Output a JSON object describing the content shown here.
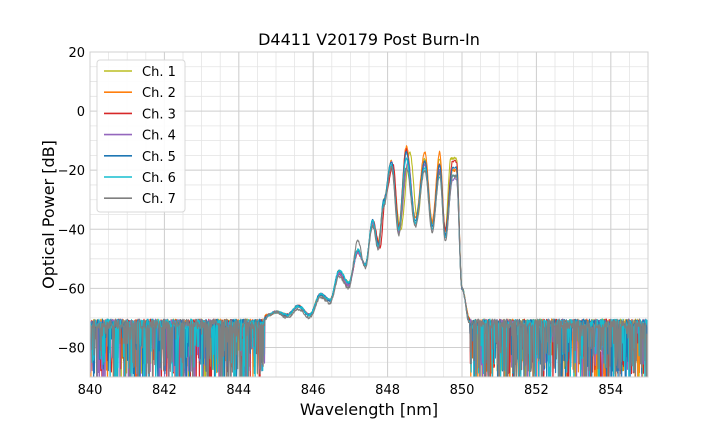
{
  "chart_data": {
    "type": "line",
    "title": "D4411 V20179 Post Burn-In",
    "xlabel": "Wavelength [nm]",
    "ylabel": "Optical Power [dB]",
    "xlim": [
      840,
      855
    ],
    "ylim": [
      -90,
      20
    ],
    "xticks": [
      840,
      842,
      844,
      846,
      848,
      850,
      852,
      854
    ],
    "yticks": [
      20,
      0,
      -20,
      -40,
      -60,
      -80
    ],
    "x_minor_step": 0.5,
    "y_minor_step": 5,
    "grid": true,
    "legend_position": "top-left",
    "noise_floor_x_ranges": [
      [
        840,
        845.0
      ],
      [
        850.2,
        855
      ]
    ],
    "noise_floor_level": -72,
    "noise_floor_min": -90,
    "series": [
      {
        "name": "Ch. 1",
        "color": "#bcbd22",
        "envelope": [
          [
            840,
            -72
          ],
          [
            844,
            -71
          ],
          [
            845,
            -69
          ],
          [
            845.6,
            -67
          ],
          [
            846,
            -66
          ],
          [
            846.5,
            -63
          ],
          [
            847,
            -60
          ],
          [
            847.5,
            -55
          ],
          [
            848,
            -48
          ],
          [
            848.3,
            -40
          ],
          [
            848.8,
            -35
          ],
          [
            849.3,
            -32
          ],
          [
            849.6,
            -28
          ],
          [
            849.9,
            -65
          ],
          [
            850.2,
            -71
          ],
          [
            855,
            -73
          ]
        ],
        "peaks": [
          [
            845.0,
            -68
          ],
          [
            845.6,
            -66
          ],
          [
            846.2,
            -62
          ],
          [
            846.7,
            -54
          ],
          [
            847.2,
            -47
          ],
          [
            847.6,
            -38
          ],
          [
            847.9,
            -30
          ],
          [
            848.1,
            -17
          ],
          [
            848.6,
            -14
          ],
          [
            849.0,
            -16
          ],
          [
            849.4,
            -16
          ],
          [
            849.7,
            -16
          ]
        ],
        "valleys": [
          [
            844.8,
            -69
          ],
          [
            845.3,
            -69
          ],
          [
            845.9,
            -69
          ],
          [
            846.45,
            -64
          ],
          [
            846.95,
            -58
          ],
          [
            847.4,
            -52
          ],
          [
            847.75,
            -45
          ],
          [
            848.35,
            -40
          ],
          [
            848.8,
            -36
          ],
          [
            849.2,
            -38
          ],
          [
            849.55,
            -40
          ]
        ]
      },
      {
        "name": "Ch. 2",
        "color": "#ff7f0e",
        "peaks": [
          [
            845.0,
            -68
          ],
          [
            845.6,
            -66
          ],
          [
            846.2,
            -62
          ],
          [
            846.7,
            -55
          ],
          [
            847.2,
            -48
          ],
          [
            847.6,
            -38
          ],
          [
            847.9,
            -31
          ],
          [
            848.1,
            -17
          ],
          [
            848.5,
            -12
          ],
          [
            849.0,
            -14
          ],
          [
            849.4,
            -14
          ],
          [
            849.75,
            -20
          ]
        ],
        "valleys": [
          [
            844.8,
            -69
          ],
          [
            845.3,
            -69
          ],
          [
            845.9,
            -69
          ],
          [
            846.45,
            -64
          ],
          [
            846.95,
            -59
          ],
          [
            847.4,
            -52
          ],
          [
            847.75,
            -44
          ],
          [
            848.3,
            -39
          ],
          [
            848.75,
            -36
          ],
          [
            849.2,
            -37
          ],
          [
            849.55,
            -41
          ]
        ]
      },
      {
        "name": "Ch. 3",
        "color": "#d62728",
        "peaks": [
          [
            845.0,
            -68
          ],
          [
            845.6,
            -66
          ],
          [
            846.2,
            -62
          ],
          [
            846.7,
            -55
          ],
          [
            847.2,
            -48
          ],
          [
            847.6,
            -37
          ],
          [
            847.95,
            -28
          ],
          [
            848.15,
            -18
          ],
          [
            848.5,
            -13
          ],
          [
            849.0,
            -17
          ],
          [
            849.4,
            -18
          ],
          [
            849.75,
            -17
          ]
        ],
        "valleys": [
          [
            844.8,
            -69
          ],
          [
            845.3,
            -69
          ],
          [
            845.9,
            -69
          ],
          [
            846.45,
            -64
          ],
          [
            846.95,
            -59
          ],
          [
            847.4,
            -52
          ],
          [
            847.8,
            -46
          ],
          [
            848.3,
            -39
          ],
          [
            848.75,
            -38
          ],
          [
            849.2,
            -39
          ],
          [
            849.55,
            -40
          ]
        ]
      },
      {
        "name": "Ch. 4",
        "color": "#9467bd",
        "peaks": [
          [
            845.0,
            -68
          ],
          [
            845.6,
            -66
          ],
          [
            846.2,
            -62
          ],
          [
            846.7,
            -55
          ],
          [
            847.2,
            -48
          ],
          [
            847.6,
            -38
          ],
          [
            847.9,
            -31
          ],
          [
            848.1,
            -17
          ],
          [
            848.55,
            -17
          ],
          [
            849.0,
            -18
          ],
          [
            849.4,
            -20
          ],
          [
            849.75,
            -23
          ]
        ],
        "valleys": [
          [
            844.8,
            -69
          ],
          [
            845.3,
            -69
          ],
          [
            845.9,
            -69
          ],
          [
            846.45,
            -64
          ],
          [
            846.95,
            -59
          ],
          [
            847.4,
            -52
          ],
          [
            847.75,
            -46
          ],
          [
            848.3,
            -41
          ],
          [
            848.75,
            -38
          ],
          [
            849.2,
            -40
          ],
          [
            849.55,
            -43
          ]
        ]
      },
      {
        "name": "Ch. 5",
        "color": "#1f77b4",
        "peaks": [
          [
            845.0,
            -68
          ],
          [
            845.6,
            -66
          ],
          [
            846.2,
            -62
          ],
          [
            846.7,
            -54
          ],
          [
            847.2,
            -47
          ],
          [
            847.6,
            -37
          ],
          [
            847.9,
            -30
          ],
          [
            848.1,
            -17
          ],
          [
            848.5,
            -14
          ],
          [
            849.0,
            -17
          ],
          [
            849.4,
            -18
          ],
          [
            849.75,
            -19
          ]
        ],
        "valleys": [
          [
            844.8,
            -69
          ],
          [
            845.3,
            -69
          ],
          [
            845.9,
            -69
          ],
          [
            846.45,
            -64
          ],
          [
            846.95,
            -58
          ],
          [
            847.4,
            -52
          ],
          [
            847.75,
            -45
          ],
          [
            848.3,
            -40
          ],
          [
            848.75,
            -37
          ],
          [
            849.2,
            -39
          ],
          [
            849.55,
            -42
          ]
        ]
      },
      {
        "name": "Ch. 6",
        "color": "#17becf",
        "peaks": [
          [
            845.0,
            -68
          ],
          [
            845.6,
            -66
          ],
          [
            846.2,
            -62
          ],
          [
            846.7,
            -54
          ],
          [
            847.2,
            -47
          ],
          [
            847.6,
            -37
          ],
          [
            847.9,
            -31
          ],
          [
            848.1,
            -18
          ],
          [
            848.5,
            -16
          ],
          [
            849.0,
            -19
          ],
          [
            849.4,
            -22
          ],
          [
            849.75,
            -22
          ]
        ],
        "valleys": [
          [
            844.8,
            -69
          ],
          [
            845.3,
            -69
          ],
          [
            845.9,
            -69
          ],
          [
            846.45,
            -64
          ],
          [
            846.95,
            -58
          ],
          [
            847.4,
            -52
          ],
          [
            847.75,
            -46
          ],
          [
            848.3,
            -40
          ],
          [
            848.75,
            -38
          ],
          [
            849.2,
            -40
          ],
          [
            849.55,
            -43
          ]
        ]
      },
      {
        "name": "Ch. 7",
        "color": "#7f7f7f",
        "peaks": [
          [
            845.0,
            -68
          ],
          [
            845.6,
            -67
          ],
          [
            846.2,
            -63
          ],
          [
            846.7,
            -56
          ],
          [
            847.2,
            -44
          ],
          [
            847.6,
            -39
          ],
          [
            847.9,
            -32
          ],
          [
            848.1,
            -19
          ],
          [
            848.5,
            -19
          ],
          [
            849.0,
            -20
          ],
          [
            849.4,
            -21
          ],
          [
            849.75,
            -22
          ]
        ],
        "valleys": [
          [
            844.8,
            -69
          ],
          [
            845.3,
            -70
          ],
          [
            845.9,
            -70
          ],
          [
            846.45,
            -65
          ],
          [
            846.95,
            -60
          ],
          [
            847.4,
            -53
          ],
          [
            847.75,
            -47
          ],
          [
            848.3,
            -42
          ],
          [
            848.75,
            -39
          ],
          [
            849.2,
            -41
          ],
          [
            849.55,
            -44
          ]
        ]
      }
    ]
  }
}
